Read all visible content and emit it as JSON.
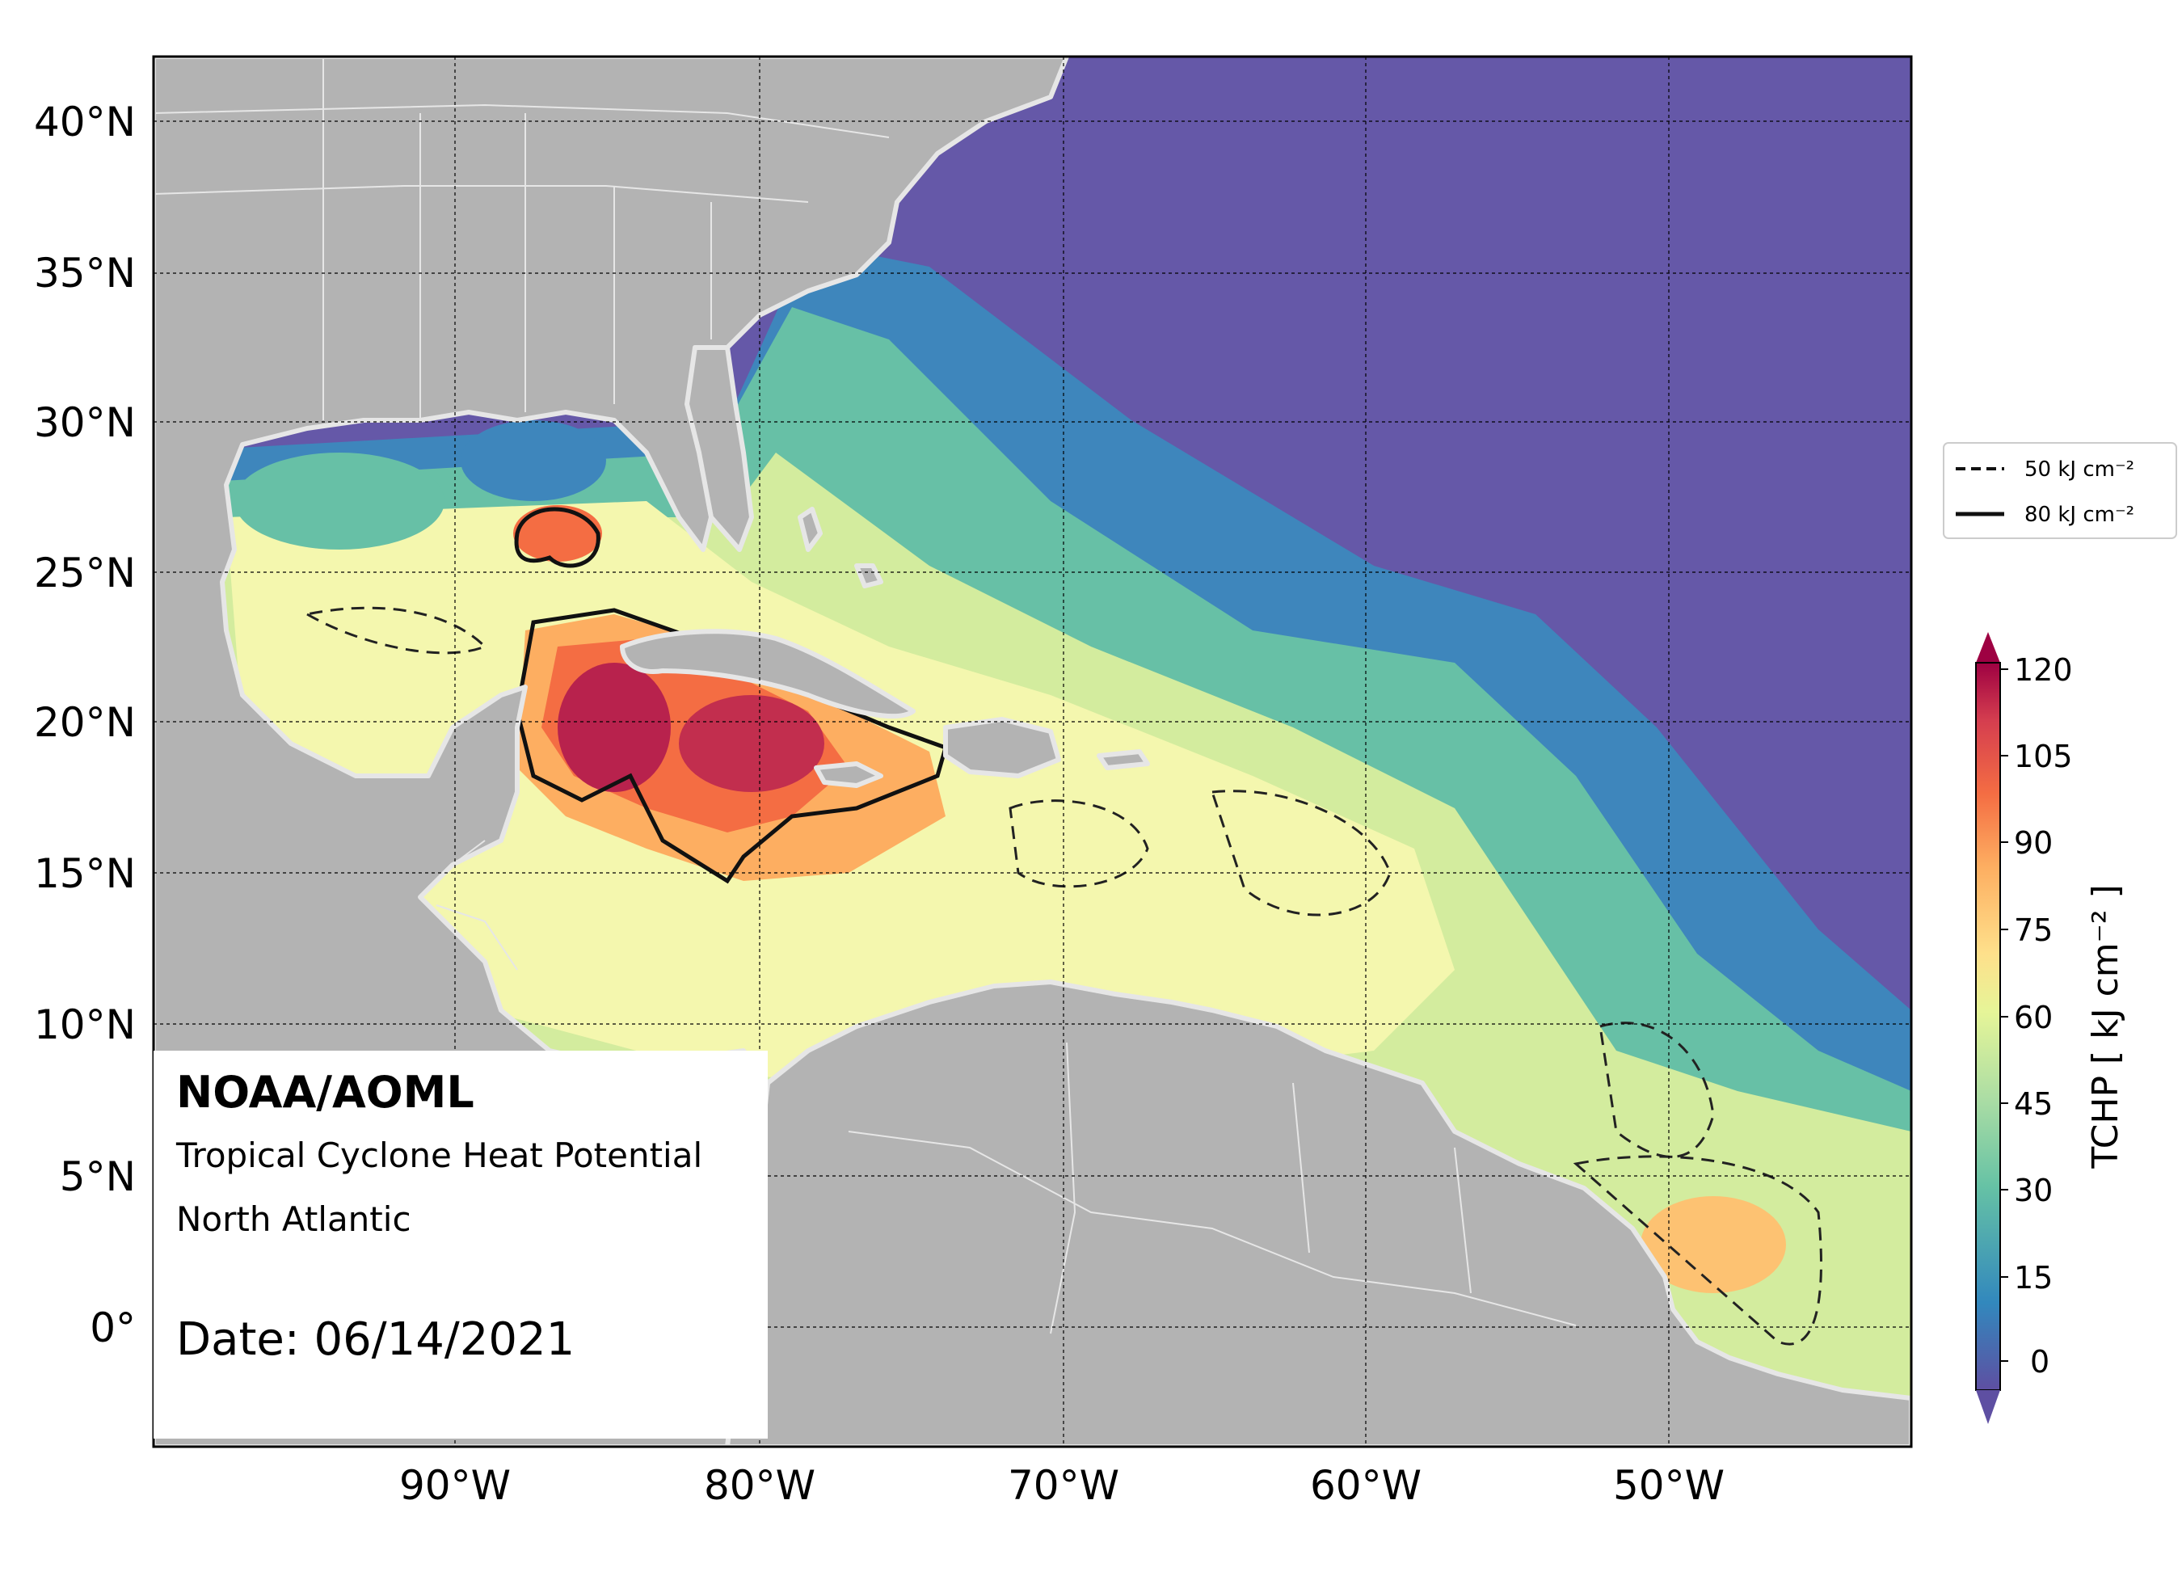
{
  "branding": {
    "agency": "NOAA/AOML",
    "product": "Tropical Cyclone Heat Potential",
    "region": "North Atlantic",
    "date_label": "Date: 06/14/2021"
  },
  "axes": {
    "lon_ticks": [
      "90°W",
      "80°W",
      "70°W",
      "60°W",
      "50°W"
    ],
    "lat_ticks": [
      "40°N",
      "35°N",
      "30°N",
      "25°N",
      "20°N",
      "15°N",
      "10°N",
      "5°N",
      "0°"
    ],
    "lon_range": [
      -100,
      -42
    ],
    "lat_range": [
      -4,
      42
    ]
  },
  "legend": {
    "items": [
      {
        "style": "dashed",
        "label": "50 kJ cm⁻²"
      },
      {
        "style": "solid",
        "label": "80 kJ cm⁻²"
      }
    ]
  },
  "colorbar": {
    "title": "TCHP [ kJ cm⁻² ]",
    "ticks": [
      "0",
      "15",
      "30",
      "45",
      "60",
      "75",
      "90",
      "105",
      "120"
    ],
    "range": [
      -5,
      120
    ],
    "colors": [
      "#5e4fa2",
      "#3e63b0",
      "#3288bd",
      "#43a0b4",
      "#66c2a5",
      "#99d5a4",
      "#abdda4",
      "#d1ec9c",
      "#e6f598",
      "#f5fbb0",
      "#fee08b",
      "#fdc272",
      "#fdae61",
      "#f68c52",
      "#f46d43",
      "#dc4a4c",
      "#d53e4f",
      "#b8224d",
      "#9e0142"
    ]
  },
  "colors": {
    "land": "#b3b3b3",
    "coast": "#e6e6e6",
    "ocean_low": "#6558a8"
  }
}
